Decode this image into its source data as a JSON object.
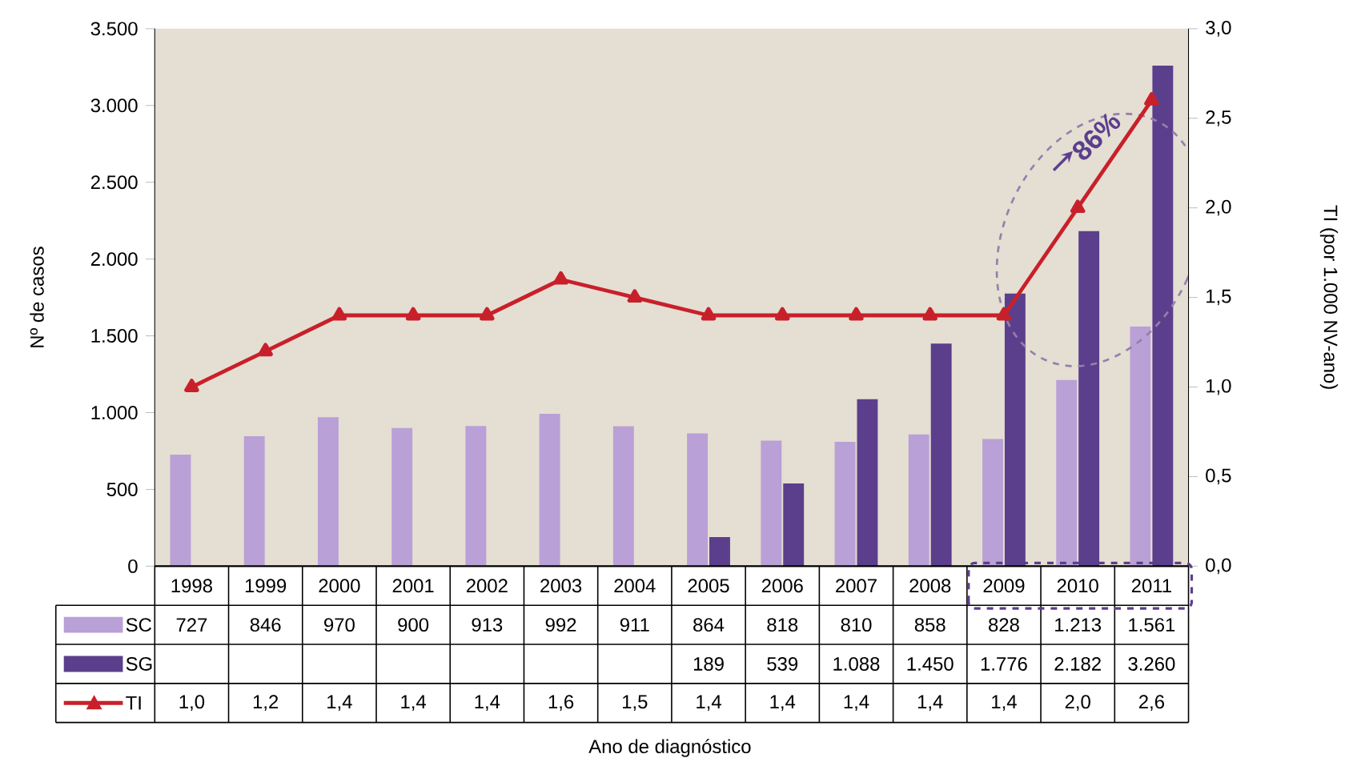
{
  "chart_data": {
    "type": "bar",
    "ylabel": "Nº de casos",
    "y2label": "TI (por 1.000 NV-ano)",
    "categories": [
      "1998",
      "1999",
      "2000",
      "2001",
      "2002",
      "2003",
      "2004",
      "2005",
      "2006",
      "2007",
      "2008",
      "2009",
      "2010",
      "2011"
    ],
    "series": [
      {
        "name": "SC",
        "color": "#b9a0d6",
        "values": [
          727,
          846,
          970,
          900,
          913,
          992,
          911,
          864,
          818,
          810,
          858,
          828,
          1213,
          1561
        ],
        "value_labels": [
          "727",
          "846",
          "970",
          "900",
          "913",
          "992",
          "911",
          "864",
          "818",
          "810",
          "858",
          "828",
          "1.213",
          "1.561"
        ]
      },
      {
        "name": "SG",
        "color": "#5b3f8c",
        "values": [
          null,
          null,
          null,
          null,
          null,
          null,
          null,
          189,
          539,
          1088,
          1450,
          1776,
          2182,
          3260
        ],
        "value_labels": [
          null,
          null,
          null,
          null,
          null,
          null,
          null,
          "189",
          "539",
          "1.088",
          "1.450",
          "1.776",
          "2.182",
          "3.260"
        ]
      },
      {
        "name": "TI",
        "type": "line",
        "axis": "y2",
        "color": "#c8202a",
        "marker": "triangle",
        "values": [
          1.0,
          1.2,
          1.4,
          1.4,
          1.4,
          1.6,
          1.5,
          1.4,
          1.4,
          1.4,
          1.4,
          1.4,
          2.0,
          2.6
        ],
        "value_labels": [
          "1,0",
          "1,2",
          "1,4",
          "1,4",
          "1,4",
          "1,6",
          "1,5",
          "1,4",
          "1,4",
          "1,4",
          "1,4",
          "1,4",
          "2,0",
          "2,6"
        ]
      }
    ],
    "ylim": [
      0,
      3500
    ],
    "yticks": [
      {
        "value": 0,
        "label": "0"
      },
      {
        "value": 500,
        "label": "500"
      },
      {
        "value": 1000,
        "label": "1.000"
      },
      {
        "value": 1500,
        "label": "1.500"
      },
      {
        "value": 2000,
        "label": "2.000"
      },
      {
        "value": 2500,
        "label": "2.500"
      },
      {
        "value": 3000,
        "label": "3.000"
      },
      {
        "value": 3500,
        "label": "3.500"
      }
    ],
    "y2lim": [
      0,
      3
    ],
    "y2ticks": [
      {
        "value": 0,
        "label": "0,0"
      },
      {
        "value": 0.5,
        "label": "0,5"
      },
      {
        "value": 1,
        "label": "1,0"
      },
      {
        "value": 1.5,
        "label": "1,5"
      },
      {
        "value": 2,
        "label": "2,0"
      },
      {
        "value": 2.5,
        "label": "2,5"
      },
      {
        "value": 3,
        "label": "3,0"
      }
    ],
    "legend": "bottom",
    "annotations": [
      "86%",
      "Ano de diagnóstico"
    ]
  }
}
